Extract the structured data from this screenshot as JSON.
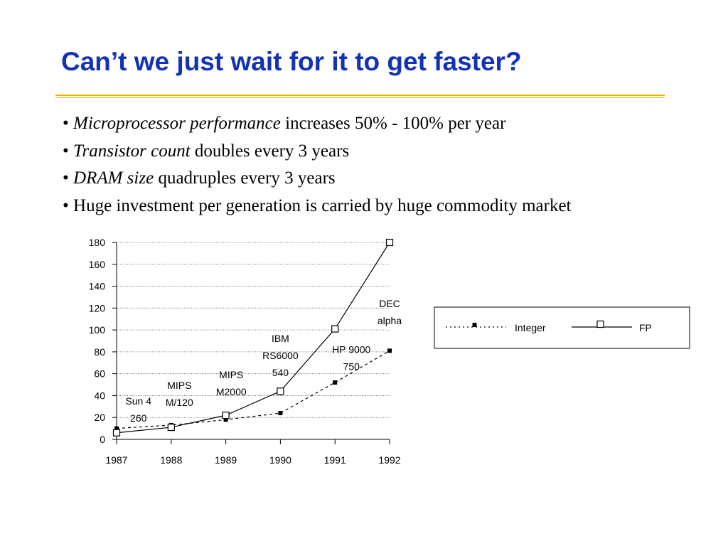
{
  "slide": {
    "title": "Can’t we just wait for it to get faster?",
    "bullets": [
      {
        "bullet": "•",
        "em": "Microprocessor performance",
        "rest": " increases 50% - 100% per year"
      },
      {
        "bullet": "•",
        "em": "Transistor count",
        "rest": " doubles every 3 years"
      },
      {
        "bullet": "•",
        "em": "DRAM size",
        "rest": " quadruples every 3 years"
      },
      {
        "bullet": "•",
        "em": "",
        "rest": "Huge investment per generation is carried by huge commodity market"
      }
    ]
  },
  "colors": {
    "title": "#1433b4",
    "rule": "#e7b400",
    "series": "#000000"
  },
  "chart_data": {
    "type": "line",
    "x": [
      1987,
      1988,
      1989,
      1990,
      1991,
      1992
    ],
    "xticks": [
      "1987",
      "1988",
      "1989",
      "1990",
      "1991",
      "1992"
    ],
    "ylim": [
      0,
      180
    ],
    "yticks": [
      "0",
      "20",
      "40",
      "60",
      "80",
      "100",
      "120",
      "140",
      "160",
      "180"
    ],
    "grid": true,
    "legend_position": "right",
    "series": [
      {
        "name": "Integer",
        "style": "dashed",
        "marker": "filled-square",
        "values": [
          10,
          13,
          18,
          24,
          52,
          81
        ]
      },
      {
        "name": "FP",
        "style": "solid",
        "marker": "open-square",
        "values": [
          6,
          11,
          22,
          44,
          101,
          180
        ]
      }
    ],
    "annotations": [
      {
        "lines": [
          "Sun 4",
          "260"
        ],
        "x": 1987.4,
        "y": 32
      },
      {
        "lines": [
          "MIPS",
          "M/120"
        ],
        "x": 1988.15,
        "y": 46
      },
      {
        "lines": [
          "MIPS",
          "M2000"
        ],
        "x": 1989.1,
        "y": 56
      },
      {
        "lines": [
          "IBM",
          "RS6000",
          "540"
        ],
        "x": 1990.0,
        "y": 89
      },
      {
        "lines": [
          "HP 9000",
          "750"
        ],
        "x": 1991.3,
        "y": 79
      },
      {
        "lines": [
          "DEC",
          "alpha"
        ],
        "x": 1992.0,
        "y": 121
      }
    ]
  }
}
